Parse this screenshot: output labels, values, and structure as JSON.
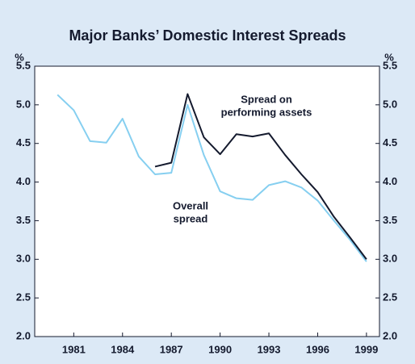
{
  "chart_data": {
    "type": "line",
    "title": "Major Banks’ Domestic Interest Spreads",
    "y_label": "%",
    "y2_label": "%",
    "x": [
      1980,
      1981,
      1982,
      1983,
      1984,
      1985,
      1986,
      1987,
      1988,
      1989,
      1990,
      1991,
      1992,
      1993,
      1994,
      1995,
      1996,
      1997,
      1998,
      1999
    ],
    "series": [
      {
        "name": "Overall spread",
        "color": "#86cff0",
        "values": [
          5.13,
          4.93,
          4.53,
          4.51,
          4.82,
          4.33,
          4.1,
          4.12,
          5.0,
          4.35,
          3.88,
          3.79,
          3.77,
          3.96,
          4.01,
          3.93,
          3.76,
          3.5,
          3.25,
          2.97
        ]
      },
      {
        "name": "Spread on performing assets",
        "color": "#141a2e",
        "values": [
          null,
          null,
          null,
          null,
          null,
          null,
          4.2,
          4.25,
          5.14,
          4.58,
          4.36,
          4.62,
          4.59,
          4.63,
          4.35,
          4.1,
          3.87,
          3.55,
          3.28,
          3.0
        ]
      }
    ],
    "annotations": [
      [
        "Spread on",
        "performing assets"
      ],
      [
        "Overall",
        "spread"
      ]
    ],
    "xlim": [
      1978.6,
      1999.8
    ],
    "xticks": [
      1981,
      1984,
      1987,
      1990,
      1993,
      1996,
      1999
    ],
    "ylim": [
      2.0,
      5.5
    ],
    "yticks": [
      {
        "value": 2.0,
        "label": "2.0"
      },
      {
        "value": 2.5,
        "label": "2.5"
      },
      {
        "value": 3.0,
        "label": "3.0"
      },
      {
        "value": 3.5,
        "label": "3.5"
      },
      {
        "value": 4.0,
        "label": "4.0"
      },
      {
        "value": 4.5,
        "label": "4.5"
      },
      {
        "value": 5.0,
        "label": "5.0"
      },
      {
        "value": 5.5,
        "label": "5.5"
      }
    ],
    "y2lim": [
      2.0,
      5.5
    ],
    "y2ticks": [
      {
        "value": 2.0,
        "label": "2.0"
      },
      {
        "value": 2.5,
        "label": "2.5"
      },
      {
        "value": 3.0,
        "label": "3.0"
      },
      {
        "value": 3.5,
        "label": "3.5"
      },
      {
        "value": 4.0,
        "label": "4.0"
      },
      {
        "value": 4.5,
        "label": "4.5"
      },
      {
        "value": 5.0,
        "label": "5.0"
      },
      {
        "value": 5.5,
        "label": "5.5"
      }
    ]
  }
}
